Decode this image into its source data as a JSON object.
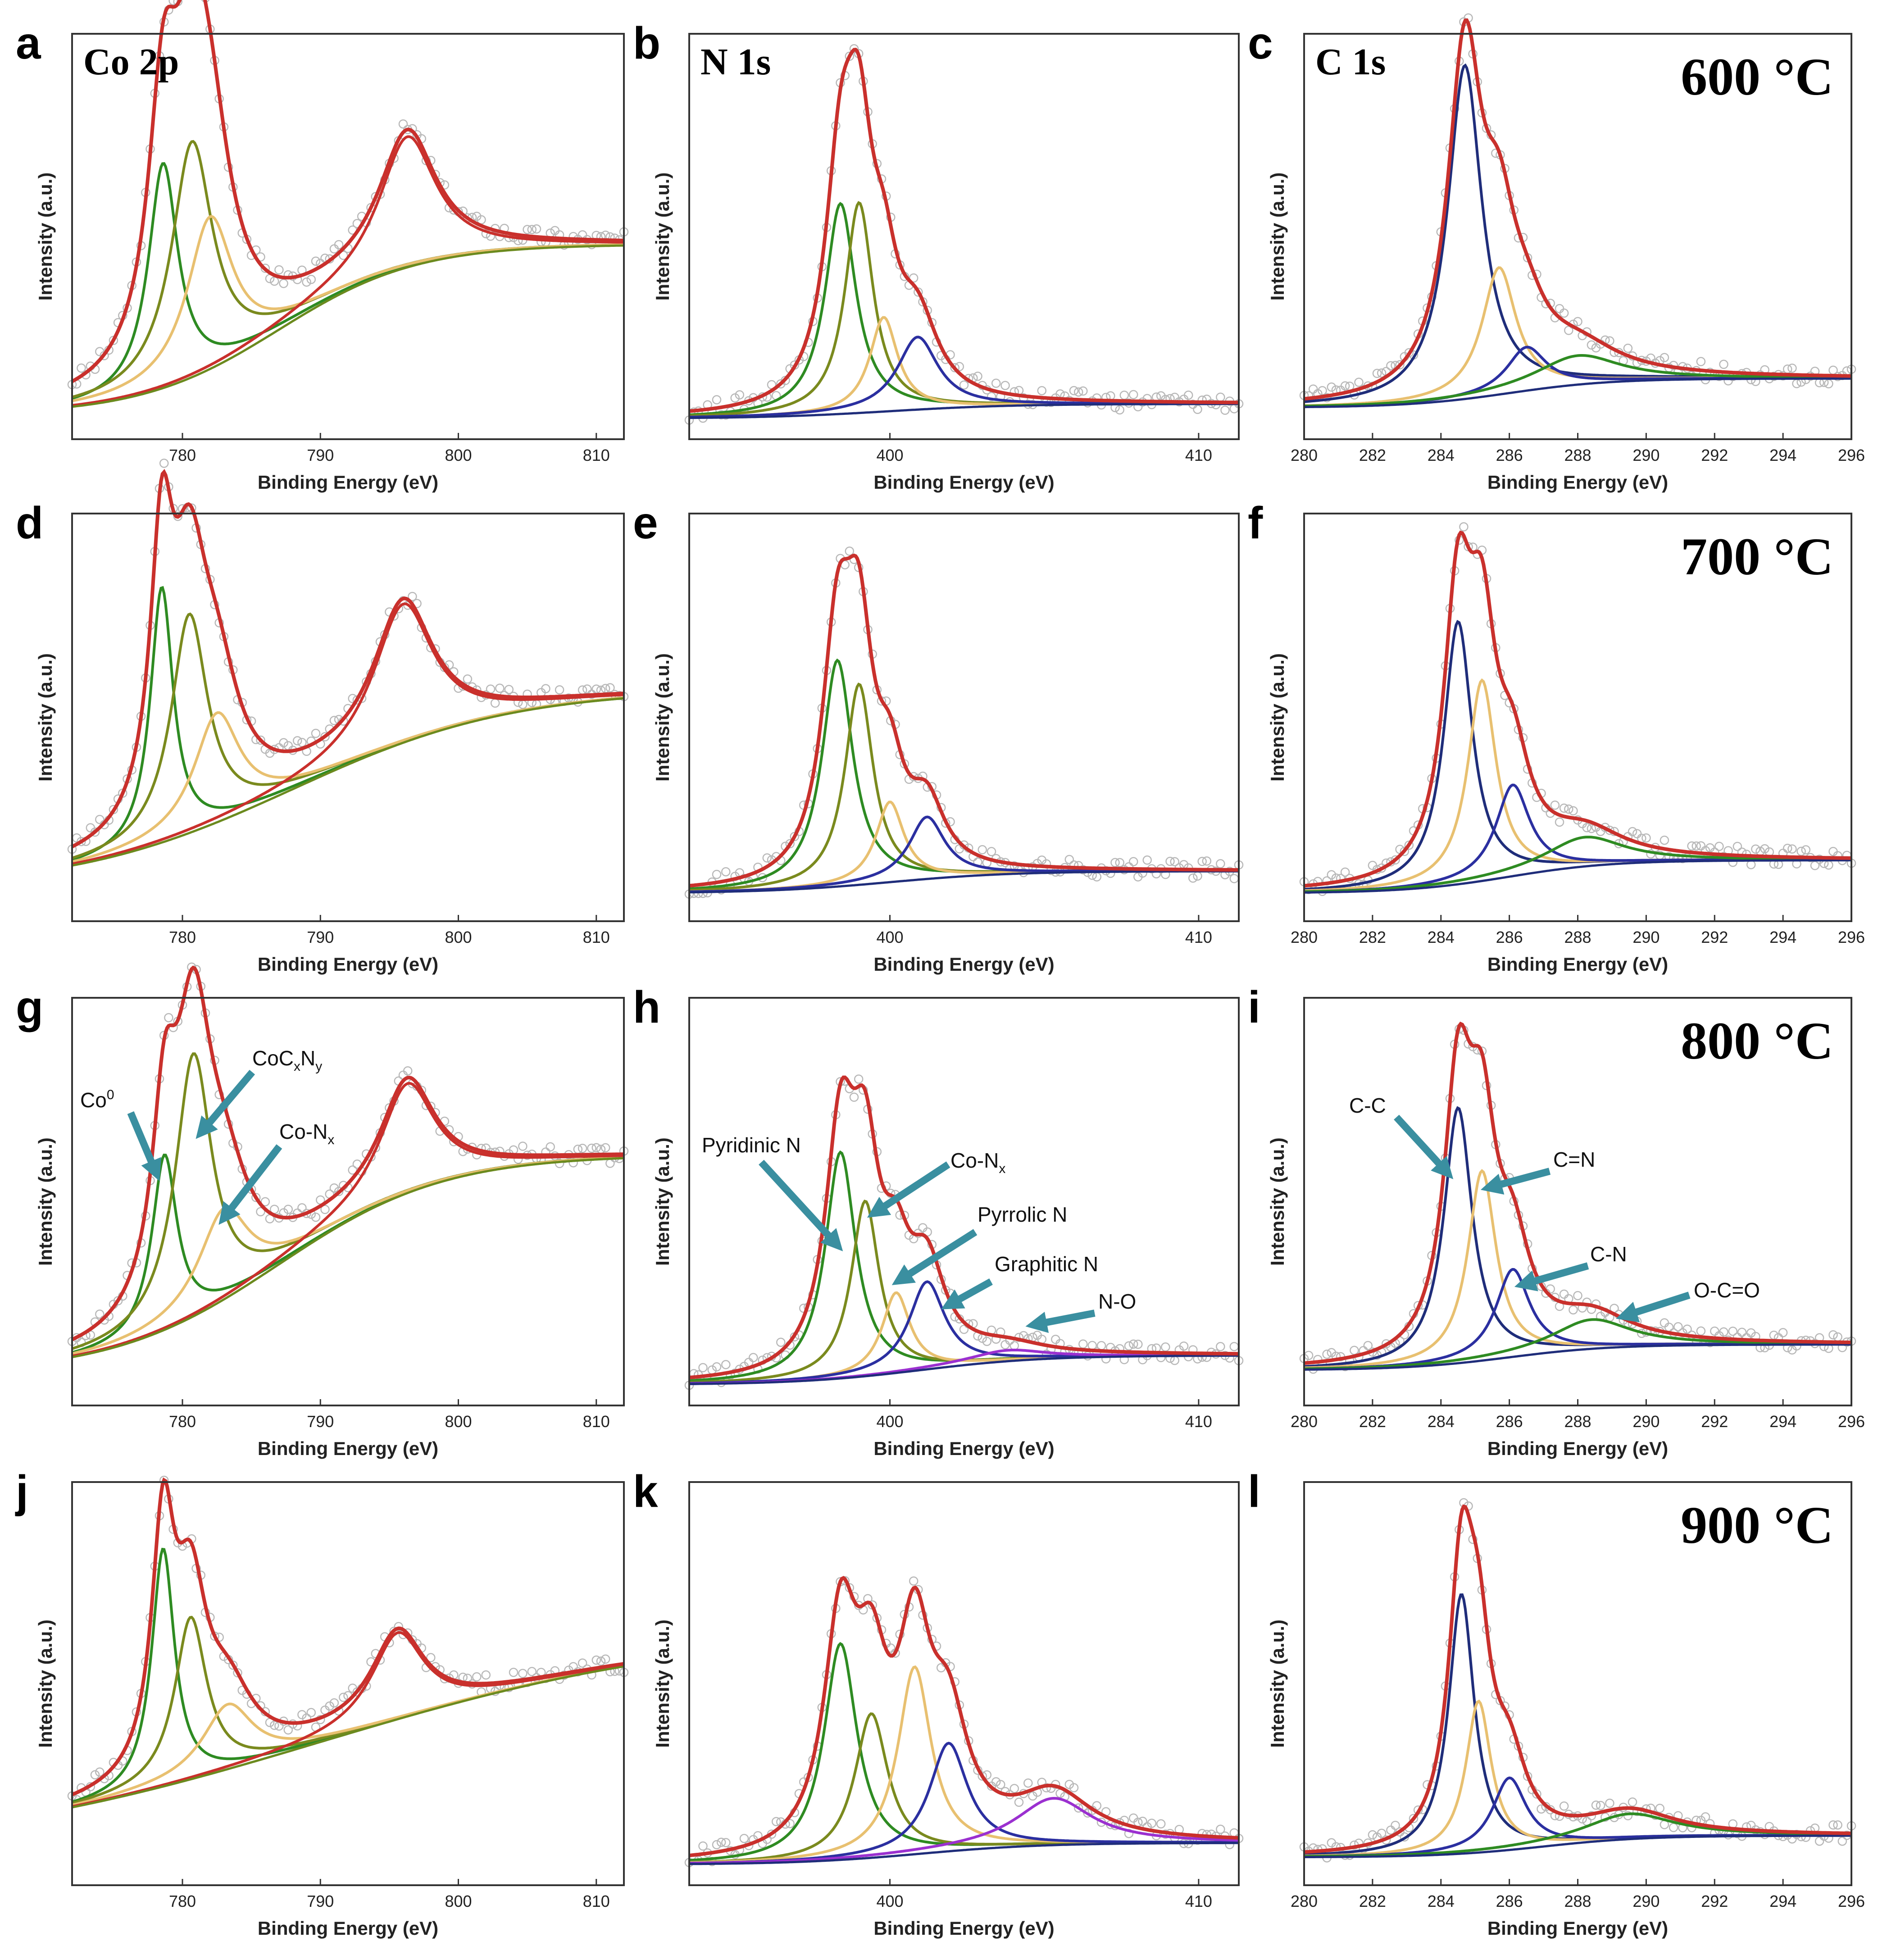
{
  "figure": {
    "title": "",
    "x_axis_title": "Binding Energy (eV)",
    "y_axis_title": "Intensity (a.u.)"
  },
  "colors": {
    "data_points": "#b8b8b8",
    "envelope": "#c9302c",
    "background": "#1f2d7a",
    "co0_pyridinic_cc": "#2e8b22",
    "cocxny_conx_ceqn": "#7a8a1e",
    "conx_pyrrolic": "#e8c070",
    "graphitic_cn": "#2b2fa0",
    "no_oco": "#9b30d0",
    "arrow": "#3a8fa0",
    "satellite_bg": "#6b8a1e"
  },
  "rows": [
    {
      "temperature": "600 °C"
    },
    {
      "temperature": "700 °C"
    },
    {
      "temperature": "800 °C"
    },
    {
      "temperature": "900 °C"
    }
  ],
  "columns": [
    {
      "region": "Co 2p",
      "ticks": [
        "780",
        "790",
        "800",
        "810"
      ]
    },
    {
      "region": "N 1s",
      "ticks": [
        "400",
        "410"
      ]
    },
    {
      "region": "C 1s",
      "ticks": [
        "280",
        "282",
        "284",
        "286",
        "288",
        "290",
        "292",
        "294",
        "296"
      ]
    }
  ],
  "panel_letters": [
    "a",
    "b",
    "c",
    "d",
    "e",
    "f",
    "g",
    "h",
    "i",
    "j",
    "k",
    "l"
  ],
  "annotations": {
    "co2p": {
      "co0": "Co",
      "co0_sup": "0",
      "cocxny_main": "CoC",
      "cocxny_x": "x",
      "cocxny_n": "N",
      "cocxny_y": "y",
      "conx_main": "Co-N",
      "conx_sub": "x"
    },
    "n1s": {
      "pyridinic": "Pyridinic N",
      "conx_main": "Co-N",
      "conx_sub": "x",
      "pyrrolic": "Pyrrolic N",
      "graphitic": "Graphitic N",
      "no": "N-O"
    },
    "c1s": {
      "cc": "C-C",
      "ceqn": "C=N",
      "cn": "C-N",
      "oco": "O-C=O"
    }
  },
  "chart_data": [
    {
      "type": "line",
      "panel": "a",
      "region": "Co 2p",
      "temperature": "600 °C",
      "xlim": [
        772,
        812
      ],
      "xlabel": "Binding Energy (eV)",
      "ylabel": "Intensity (a.u.)",
      "baseline": {
        "start": 0.03,
        "end": 0.5,
        "shift": 787,
        "width": 5
      },
      "peaks": [
        {
          "name": "Co0",
          "center": 778.6,
          "height": 0.62,
          "width": 1.3,
          "color": "#2e8b22"
        },
        {
          "name": "CoCxNy",
          "center": 780.7,
          "height": 0.65,
          "width": 1.8,
          "color": "#7a8a1e"
        },
        {
          "name": "Co-Nx",
          "center": 782.0,
          "height": 0.42,
          "width": 2.0,
          "color": "#e8c070"
        },
        {
          "name": "Co 2p1/2",
          "center": 796.3,
          "height": 0.36,
          "width": 2.5,
          "color": "#c9302c"
        }
      ]
    },
    {
      "type": "line",
      "panel": "b",
      "region": "N 1s",
      "temperature": "600 °C",
      "xlim": [
        393.5,
        411.3
      ],
      "xlabel": "Binding Energy (eV)",
      "ylabel": "Intensity (a.u.)",
      "baseline": {
        "start": 0.02,
        "end": 0.06,
        "shift": 400,
        "width": 2
      },
      "peaks": [
        {
          "name": "Pyridinic N",
          "center": 398.4,
          "height": 0.58,
          "width": 0.6,
          "color": "#2e8b22"
        },
        {
          "name": "Co-Nx",
          "center": 399.0,
          "height": 0.58,
          "width": 0.55,
          "color": "#7a8a1e"
        },
        {
          "name": "Pyrrolic N",
          "center": 399.8,
          "height": 0.26,
          "width": 0.55,
          "color": "#e8c070"
        },
        {
          "name": "Graphitic N",
          "center": 400.9,
          "height": 0.2,
          "width": 0.8,
          "color": "#2b2fa0"
        }
      ]
    },
    {
      "type": "line",
      "panel": "c",
      "region": "C 1s",
      "temperature": "600 °C",
      "xlim": [
        280,
        296
      ],
      "xlabel": "Binding Energy (eV)",
      "ylabel": "Intensity (a.u.)",
      "baseline": {
        "start": 0.05,
        "end": 0.13,
        "shift": 286,
        "width": 1.5
      },
      "peaks": [
        {
          "name": "C-C",
          "center": 284.7,
          "height": 0.92,
          "width": 0.6,
          "color": "#1f2d7a"
        },
        {
          "name": "C=N",
          "center": 285.7,
          "height": 0.35,
          "width": 0.6,
          "color": "#e8c070"
        },
        {
          "name": "C-N",
          "center": 286.5,
          "height": 0.12,
          "width": 0.7,
          "color": "#2b2fa0"
        },
        {
          "name": "O-C=O",
          "center": 288.0,
          "height": 0.08,
          "width": 1.5,
          "color": "#2e8b22"
        }
      ]
    },
    {
      "type": "line",
      "panel": "d",
      "region": "Co 2p",
      "temperature": "700 °C",
      "xlim": [
        772,
        812
      ],
      "xlabel": "Binding Energy (eV)",
      "ylabel": "Intensity (a.u.)",
      "baseline": {
        "start": 0.05,
        "end": 0.6,
        "shift": 788,
        "width": 8
      },
      "peaks": [
        {
          "name": "Co0",
          "center": 778.5,
          "height": 0.7,
          "width": 1.0,
          "color": "#2e8b22"
        },
        {
          "name": "CoCxNy",
          "center": 780.5,
          "height": 0.6,
          "width": 1.6,
          "color": "#7a8a1e"
        },
        {
          "name": "Co-Nx",
          "center": 782.5,
          "height": 0.3,
          "width": 2.0,
          "color": "#e8c070"
        },
        {
          "name": "Co 2p1/2",
          "center": 796.0,
          "height": 0.38,
          "width": 2.6,
          "color": "#c9302c"
        }
      ]
    },
    {
      "type": "line",
      "panel": "e",
      "region": "N 1s",
      "temperature": "700 °C",
      "xlim": [
        393.5,
        411.3
      ],
      "xlabel": "Binding Energy (eV)",
      "ylabel": "Intensity (a.u.)",
      "baseline": {
        "start": 0.04,
        "end": 0.1,
        "shift": 400,
        "width": 2
      },
      "peaks": [
        {
          "name": "Pyridinic N",
          "center": 398.3,
          "height": 0.62,
          "width": 0.6,
          "color": "#2e8b22"
        },
        {
          "name": "Co-Nx",
          "center": 399.0,
          "height": 0.55,
          "width": 0.55,
          "color": "#7a8a1e"
        },
        {
          "name": "Pyrrolic N",
          "center": 400.0,
          "height": 0.22,
          "width": 0.55,
          "color": "#e8c070"
        },
        {
          "name": "Graphitic N",
          "center": 401.2,
          "height": 0.17,
          "width": 0.7,
          "color": "#2b2fa0"
        }
      ]
    },
    {
      "type": "line",
      "panel": "f",
      "region": "C 1s",
      "temperature": "700 °C",
      "xlim": [
        280,
        296
      ],
      "xlabel": "Binding Energy (eV)",
      "ylabel": "Intensity (a.u.)",
      "baseline": {
        "start": 0.04,
        "end": 0.13,
        "shift": 286,
        "width": 1.5
      },
      "peaks": [
        {
          "name": "C-C",
          "center": 284.5,
          "height": 0.72,
          "width": 0.5,
          "color": "#1f2d7a"
        },
        {
          "name": "C=N",
          "center": 285.2,
          "height": 0.55,
          "width": 0.5,
          "color": "#e8c070"
        },
        {
          "name": "C-N",
          "center": 286.1,
          "height": 0.25,
          "width": 0.6,
          "color": "#2b2fa0"
        },
        {
          "name": "O-C=O",
          "center": 288.2,
          "height": 0.08,
          "width": 1.4,
          "color": "#2e8b22"
        }
      ]
    },
    {
      "type": "line",
      "panel": "g",
      "region": "Co 2p",
      "temperature": "800 °C",
      "xlim": [
        772,
        812
      ],
      "xlabel": "Binding Energy (eV)",
      "ylabel": "Intensity (a.u.)",
      "baseline": {
        "start": 0.05,
        "end": 0.65,
        "shift": 787,
        "width": 6
      },
      "peaks": [
        {
          "name": "Co0",
          "center": 778.7,
          "height": 0.48,
          "width": 1.1,
          "color": "#2e8b22"
        },
        {
          "name": "CoCxNy",
          "center": 780.8,
          "height": 0.72,
          "width": 1.6,
          "color": "#7a8a1e"
        },
        {
          "name": "Co-Nx",
          "center": 783.0,
          "height": 0.25,
          "width": 2.2,
          "color": "#e8c070"
        },
        {
          "name": "Co 2p1/2",
          "center": 796.3,
          "height": 0.3,
          "width": 2.4,
          "color": "#c9302c"
        }
      ]
    },
    {
      "type": "line",
      "panel": "h",
      "region": "N 1s",
      "temperature": "800 °C",
      "xlim": [
        393.5,
        411.3
      ],
      "xlabel": "Binding Energy (eV)",
      "ylabel": "Intensity (a.u.)",
      "baseline": {
        "start": 0.02,
        "end": 0.1,
        "shift": 401,
        "width": 2
      },
      "peaks": [
        {
          "name": "Pyridinic N",
          "center": 398.4,
          "height": 0.62,
          "width": 0.6,
          "color": "#2e8b22"
        },
        {
          "name": "Co-Nx",
          "center": 399.2,
          "height": 0.48,
          "width": 0.55,
          "color": "#7a8a1e"
        },
        {
          "name": "Pyrrolic N",
          "center": 400.2,
          "height": 0.22,
          "width": 0.55,
          "color": "#e8c070"
        },
        {
          "name": "Graphitic N",
          "center": 401.2,
          "height": 0.24,
          "width": 0.7,
          "color": "#2b2fa0"
        },
        {
          "name": "N-O",
          "center": 403.8,
          "height": 0.03,
          "width": 1.5,
          "color": "#9b30d0"
        }
      ]
    },
    {
      "type": "line",
      "panel": "i",
      "region": "C 1s",
      "temperature": "800 °C",
      "xlim": [
        280,
        296
      ],
      "xlabel": "Binding Energy (eV)",
      "ylabel": "Intensity (a.u.)",
      "baseline": {
        "start": 0.06,
        "end": 0.13,
        "shift": 286,
        "width": 1.5
      },
      "peaks": [
        {
          "name": "C-C",
          "center": 284.5,
          "height": 0.7,
          "width": 0.5,
          "color": "#1f2d7a"
        },
        {
          "name": "C=N",
          "center": 285.2,
          "height": 0.52,
          "width": 0.5,
          "color": "#e8c070"
        },
        {
          "name": "C-N",
          "center": 286.1,
          "height": 0.24,
          "width": 0.6,
          "color": "#2b2fa0"
        },
        {
          "name": "O-C=O",
          "center": 288.4,
          "height": 0.08,
          "width": 1.4,
          "color": "#2e8b22"
        }
      ]
    },
    {
      "type": "line",
      "panel": "j",
      "region": "Co 2p",
      "temperature": "900 °C",
      "xlim": [
        772,
        812
      ],
      "xlabel": "Binding Energy (eV)",
      "ylabel": "Intensity (a.u.)",
      "baseline": {
        "start": 0.04,
        "end": 0.68,
        "shift": 790,
        "width": 14
      },
      "peaks": [
        {
          "name": "Co0",
          "center": 778.6,
          "height": 0.66,
          "width": 1.0,
          "color": "#2e8b22"
        },
        {
          "name": "CoCxNy",
          "center": 780.6,
          "height": 0.45,
          "width": 1.4,
          "color": "#7a8a1e"
        },
        {
          "name": "Co-Nx",
          "center": 783.3,
          "height": 0.18,
          "width": 2.2,
          "color": "#e8c070"
        },
        {
          "name": "Co 2p1/2",
          "center": 795.6,
          "height": 0.24,
          "width": 2.3,
          "color": "#c9302c"
        }
      ]
    },
    {
      "type": "line",
      "panel": "k",
      "region": "N 1s",
      "temperature": "900 °C",
      "xlim": [
        393.5,
        411.3
      ],
      "xlabel": "Binding Energy (eV)",
      "ylabel": "Intensity (a.u.)",
      "baseline": {
        "start": 0.02,
        "end": 0.08,
        "shift": 401,
        "width": 2
      },
      "peaks": [
        {
          "name": "Pyridinic N",
          "center": 398.4,
          "height": 0.6,
          "width": 0.65,
          "color": "#2e8b22"
        },
        {
          "name": "Co-Nx",
          "center": 399.4,
          "height": 0.4,
          "width": 0.65,
          "color": "#7a8a1e"
        },
        {
          "name": "Pyrrolic N",
          "center": 400.8,
          "height": 0.52,
          "width": 0.65,
          "color": "#e8c070"
        },
        {
          "name": "Graphitic N",
          "center": 401.9,
          "height": 0.3,
          "width": 0.75,
          "color": "#2b2fa0"
        },
        {
          "name": "N-O",
          "center": 405.3,
          "height": 0.13,
          "width": 1.5,
          "color": "#9b30d0"
        }
      ]
    },
    {
      "type": "line",
      "panel": "l",
      "region": "C 1s",
      "temperature": "900 °C",
      "xlim": [
        280,
        296
      ],
      "xlabel": "Binding Energy (eV)",
      "ylabel": "Intensity (a.u.)",
      "baseline": {
        "start": 0.04,
        "end": 0.1,
        "shift": 287,
        "width": 1.5
      },
      "peaks": [
        {
          "name": "C-C",
          "center": 284.6,
          "height": 0.72,
          "width": 0.45,
          "color": "#1f2d7a"
        },
        {
          "name": "C=N",
          "center": 285.1,
          "height": 0.42,
          "width": 0.45,
          "color": "#e8c070"
        },
        {
          "name": "C-N",
          "center": 286.0,
          "height": 0.2,
          "width": 0.6,
          "color": "#2b2fa0"
        },
        {
          "name": "O-C=O",
          "center": 289.5,
          "height": 0.07,
          "width": 1.6,
          "color": "#2e8b22"
        }
      ]
    }
  ]
}
